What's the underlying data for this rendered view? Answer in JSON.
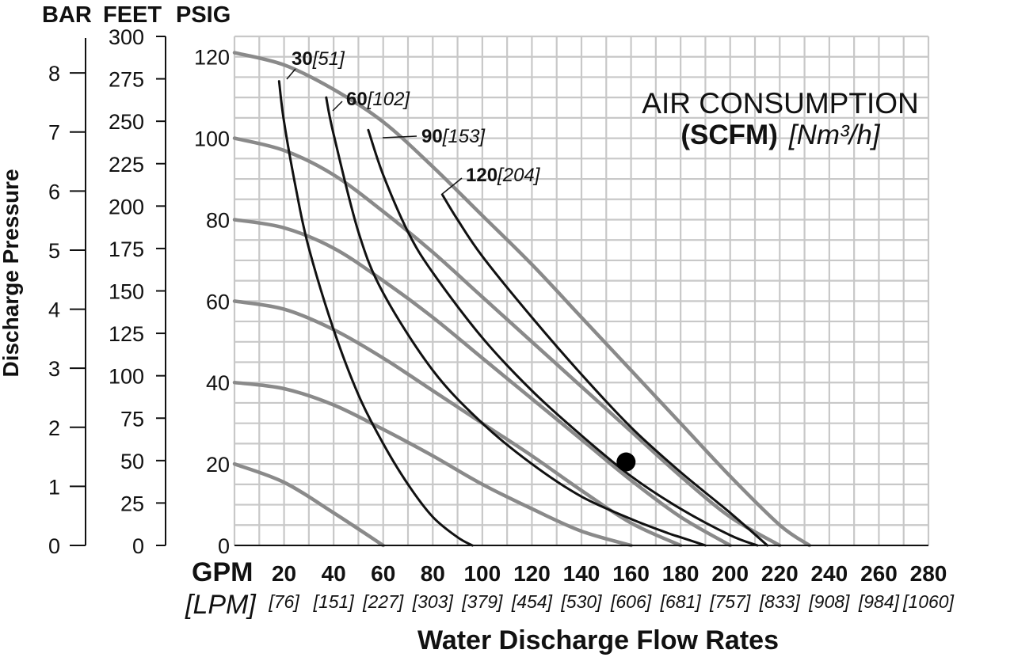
{
  "chart_data": {
    "type": "line",
    "title": "",
    "legend": {
      "title_line1": "AIR CONSUMPTION",
      "title_line2_bold": "(SCFM)",
      "title_line2_italic": "[Nm³/h]",
      "placement": "top-right"
    },
    "xlabel": "Water Discharge Flow Rates",
    "x_unit_primary": "GPM",
    "x_unit_secondary": "[LPM]",
    "ylabel": "Discharge Pressure",
    "y_axis_headers": [
      "BAR",
      "FEET",
      "PSIG"
    ],
    "xlim": [
      0,
      280
    ],
    "ylim_psig": [
      0,
      125
    ],
    "x_tick_values": [
      20,
      40,
      60,
      80,
      100,
      120,
      140,
      160,
      180,
      200,
      220,
      240,
      260,
      280
    ],
    "x_tick_labels_gpm": [
      "20",
      "40",
      "60",
      "80",
      "100",
      "120",
      "140",
      "160",
      "180",
      "200",
      "220",
      "240",
      "260",
      "280"
    ],
    "x_tick_labels_lpm": [
      "[76]",
      "[151]",
      "[227]",
      "[303]",
      "[379]",
      "[454]",
      "[530]",
      "[606]",
      "[681]",
      "[757]",
      "[833]",
      "[908]",
      "[984]",
      "[1060]"
    ],
    "y_ticks_psig": [
      "0",
      "20",
      "40",
      "60",
      "80",
      "100",
      "120"
    ],
    "y_ticks_feet": [
      "0",
      "25",
      "50",
      "75",
      "100",
      "125",
      "150",
      "175",
      "200",
      "225",
      "250",
      "275",
      "300"
    ],
    "y_ticks_bar": [
      "0",
      "1",
      "2",
      "3",
      "4",
      "5",
      "6",
      "7",
      "8"
    ],
    "grid": true,
    "pressure_curves": [
      {
        "x": [
          0,
          20,
          40,
          60
        ],
        "y": [
          20,
          15.5,
          8,
          0
        ]
      },
      {
        "x": [
          0,
          20,
          40,
          60,
          80,
          100,
          120,
          140,
          160
        ],
        "y": [
          40,
          38.5,
          34.5,
          28.5,
          22,
          15,
          9,
          3.5,
          0
        ]
      },
      {
        "x": [
          0,
          20,
          40,
          60,
          80,
          100,
          120,
          140,
          160,
          180
        ],
        "y": [
          60,
          58,
          53,
          46,
          38,
          30,
          22,
          13.5,
          5.5,
          0
        ]
      },
      {
        "x": [
          0,
          20,
          40,
          60,
          80,
          100,
          120,
          140,
          160,
          180,
          200
        ],
        "y": [
          80,
          78,
          73,
          65,
          56,
          46,
          36,
          26,
          16,
          7,
          0
        ]
      },
      {
        "x": [
          0,
          20,
          40,
          60,
          80,
          100,
          120,
          140,
          160,
          180,
          200,
          220
        ],
        "y": [
          100,
          97,
          91,
          82,
          72,
          61,
          50,
          39,
          28,
          17,
          7,
          0
        ]
      },
      {
        "x": [
          0,
          20,
          40,
          60,
          80,
          100,
          120,
          140,
          160,
          180,
          200,
          220,
          232
        ],
        "y": [
          121,
          118,
          112,
          104,
          93,
          81,
          69,
          56,
          43,
          30,
          17,
          5,
          0
        ]
      }
    ],
    "air_consumption_curves": [
      {
        "label_bold": "30",
        "label_italic": "[51]",
        "x": [
          18,
          20,
          25,
          30,
          40,
          50,
          60,
          70,
          80,
          90,
          96
        ],
        "y": [
          114,
          104,
          87,
          73,
          53,
          37,
          25,
          15,
          7,
          2,
          0
        ]
      },
      {
        "label_bold": "60",
        "label_italic": "[102]",
        "x": [
          37,
          40,
          50,
          60,
          80,
          100,
          120,
          140,
          160,
          175,
          180,
          190
        ],
        "y": [
          110,
          101,
          77,
          62,
          43,
          30,
          20,
          12,
          6.5,
          3,
          2,
          0
        ]
      },
      {
        "label_bold": "90",
        "label_italic": "[153]",
        "x": [
          54,
          60,
          70,
          80,
          100,
          120,
          140,
          160,
          180,
          200,
          211
        ],
        "y": [
          102,
          91,
          77,
          67,
          51,
          38,
          27,
          17,
          9,
          2.5,
          0
        ]
      },
      {
        "label_bold": "120",
        "label_italic": "[204]",
        "x": [
          84,
          90,
          100,
          120,
          140,
          160,
          180,
          200,
          215
        ],
        "y": [
          86,
          80,
          71,
          56,
          42,
          29,
          18,
          8,
          0
        ]
      }
    ],
    "marker_point": {
      "x": 158,
      "y": 20.5
    }
  }
}
